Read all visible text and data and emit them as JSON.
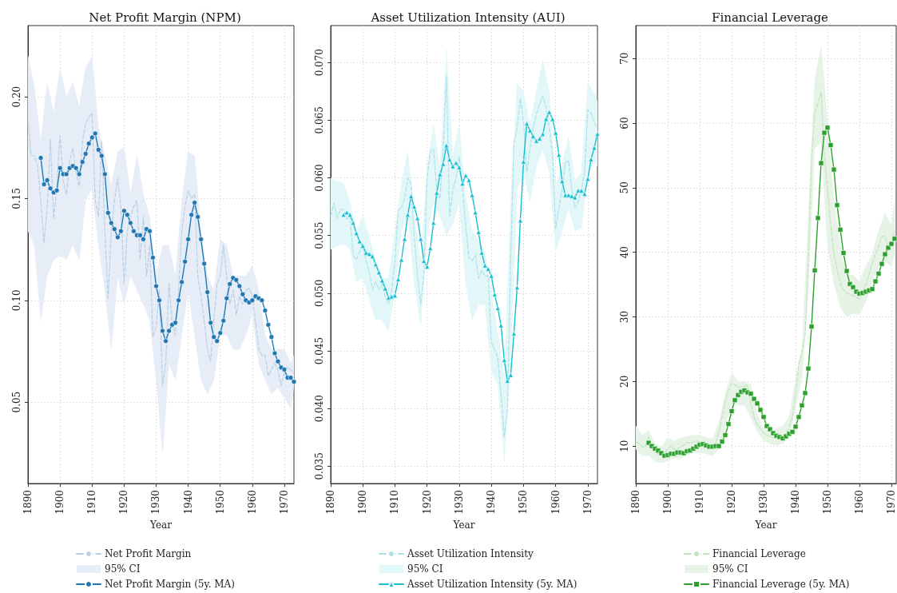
{
  "chart_data": [
    {
      "type": "line",
      "title": "Net Profit Margin (NPM)",
      "xlabel": "Year",
      "xlim": [
        1890,
        1973
      ],
      "xticks": [
        1890,
        1900,
        1910,
        1920,
        1930,
        1940,
        1950,
        1960,
        1970
      ],
      "ylim": [
        0.01,
        0.235
      ],
      "yticks": [
        {
          "value": 0.05,
          "label": "0.05"
        },
        {
          "value": 0.1,
          "label": "0.10"
        },
        {
          "value": 0.15,
          "label": "0.15"
        },
        {
          "value": 0.2,
          "label": "0.20"
        }
      ],
      "grid": true,
      "legend": "bottom",
      "series": [
        {
          "name": "Net Profit Margin",
          "type": "line",
          "color": "#b9cfe4",
          "marker": "none",
          "line_style": "dashed",
          "x": [
            1890,
            1891,
            1892,
            1893,
            1894,
            1895,
            1896,
            1897,
            1898,
            1899,
            1900,
            1901,
            1902,
            1903,
            1904,
            1905,
            1906,
            1907,
            1908,
            1909,
            1910,
            1911,
            1912,
            1913,
            1914,
            1915,
            1916,
            1917,
            1918,
            1919,
            1920,
            1921,
            1922,
            1923,
            1924,
            1925,
            1926,
            1927,
            1928,
            1929,
            1930,
            1931,
            1932,
            1933,
            1934,
            1935,
            1936,
            1937,
            1938,
            1939,
            1940,
            1941,
            1942,
            1943,
            1944,
            1945,
            1946,
            1947,
            1948,
            1949,
            1950,
            1951,
            1952,
            1953,
            1954,
            1955,
            1956,
            1957,
            1958,
            1959,
            1960,
            1961,
            1962,
            1963,
            1964,
            1965,
            1966,
            1967,
            1968,
            1969,
            1970,
            1971,
            1972,
            1973
          ],
          "values": [
            0.188,
            0.171,
            0.171,
            0.166,
            0.149,
            0.128,
            0.146,
            0.179,
            0.14,
            0.155,
            0.181,
            0.159,
            0.152,
            0.168,
            0.175,
            0.163,
            0.156,
            0.178,
            0.187,
            0.19,
            0.192,
            0.149,
            0.141,
            0.178,
            0.134,
            0.101,
            0.134,
            0.149,
            0.16,
            0.146,
            0.108,
            0.134,
            0.141,
            0.146,
            0.149,
            0.12,
            0.141,
            0.112,
            0.127,
            0.082,
            0.087,
            0.105,
            0.058,
            0.069,
            0.108,
            0.09,
            0.083,
            0.105,
            0.134,
            0.146,
            0.154,
            0.15,
            0.152,
            0.112,
            0.102,
            0.09,
            0.076,
            0.07,
            0.09,
            0.108,
            0.112,
            0.127,
            0.112,
            0.098,
            0.105,
            0.093,
            0.102,
            0.098,
            0.105,
            0.106,
            0.102,
            0.09,
            0.076,
            0.073,
            0.073,
            0.063,
            0.066,
            0.069,
            0.066,
            0.058,
            0.064,
            0.067,
            0.066,
            0.064
          ]
        },
        {
          "name": "95% CI",
          "type": "area",
          "color": "#e6edf6",
          "values": [
            null,
            null,
            null,
            null,
            null,
            null,
            null,
            null,
            null,
            null,
            null,
            null,
            null,
            null,
            null,
            null,
            null,
            null,
            null,
            null,
            null,
            null,
            null,
            null,
            null,
            null,
            null,
            null,
            null,
            null,
            null,
            null,
            null,
            null,
            null,
            null,
            null,
            null,
            null,
            null,
            null,
            null,
            null
          ],
          "x": [
            1890,
            1892,
            1894,
            1896,
            1898,
            1900,
            1902,
            1904,
            1906,
            1908,
            1910,
            1912,
            1914,
            1916,
            1918,
            1920,
            1922,
            1924,
            1926,
            1928,
            1930,
            1932,
            1934,
            1936,
            1938,
            1940,
            1942,
            1944,
            1946,
            1948,
            1950,
            1952,
            1954,
            1956,
            1958,
            1960,
            1962,
            1964,
            1966,
            1968,
            1970,
            1972,
            1973
          ],
          "lower": [
            0.134,
            0.127,
            0.09,
            0.112,
            0.12,
            0.122,
            0.12,
            0.127,
            0.12,
            0.149,
            0.155,
            0.127,
            0.105,
            0.076,
            0.112,
            0.098,
            0.112,
            0.105,
            0.098,
            0.09,
            0.061,
            0.025,
            0.069,
            0.061,
            0.083,
            0.105,
            0.083,
            0.061,
            0.054,
            0.061,
            0.083,
            0.083,
            0.076,
            0.076,
            0.083,
            0.093,
            0.069,
            0.061,
            0.054,
            0.057,
            0.052,
            0.047,
            0.058
          ],
          "upper": [
            0.22,
            0.205,
            0.178,
            0.207,
            0.192,
            0.214,
            0.2,
            0.207,
            0.195,
            0.214,
            0.22,
            0.185,
            0.171,
            0.156,
            0.173,
            0.175,
            0.152,
            0.171,
            0.152,
            0.141,
            0.112,
            0.127,
            0.127,
            0.112,
            0.149,
            0.173,
            0.171,
            0.134,
            0.112,
            0.105,
            0.13,
            0.127,
            0.112,
            0.112,
            0.112,
            0.117,
            0.105,
            0.083,
            0.076,
            0.076,
            0.076,
            0.069,
            0.073
          ]
        },
        {
          "name": "Net Profit Margin (5y. MA)",
          "type": "line",
          "color": "#1f77b4",
          "marker": "circle",
          "line_style": "solid",
          "x": [
            1894,
            1895,
            1896,
            1897,
            1898,
            1899,
            1900,
            1901,
            1902,
            1903,
            1904,
            1905,
            1906,
            1907,
            1908,
            1909,
            1910,
            1911,
            1912,
            1913,
            1914,
            1915,
            1916,
            1917,
            1918,
            1919,
            1920,
            1921,
            1922,
            1923,
            1924,
            1925,
            1926,
            1927,
            1928,
            1929,
            1930,
            1931,
            1932,
            1933,
            1934,
            1935,
            1936,
            1937,
            1938,
            1939,
            1940,
            1941,
            1942,
            1943,
            1944,
            1945,
            1946,
            1947,
            1948,
            1949,
            1950,
            1951,
            1952,
            1953,
            1954,
            1955,
            1956,
            1957,
            1958,
            1959,
            1960,
            1961,
            1962,
            1963,
            1964,
            1965,
            1966,
            1967,
            1968,
            1969,
            1970,
            1971,
            1972,
            1973
          ],
          "values": [
            0.17,
            0.157,
            0.159,
            0.155,
            0.153,
            0.154,
            0.165,
            0.162,
            0.162,
            0.165,
            0.166,
            0.165,
            0.162,
            0.168,
            0.172,
            0.177,
            0.18,
            0.182,
            0.174,
            0.171,
            0.162,
            0.143,
            0.138,
            0.135,
            0.131,
            0.134,
            0.144,
            0.142,
            0.138,
            0.134,
            0.132,
            0.132,
            0.13,
            0.135,
            0.134,
            0.121,
            0.107,
            0.1,
            0.085,
            0.08,
            0.085,
            0.088,
            0.089,
            0.1,
            0.109,
            0.119,
            0.13,
            0.142,
            0.148,
            0.141,
            0.13,
            0.118,
            0.104,
            0.089,
            0.082,
            0.08,
            0.084,
            0.09,
            0.101,
            0.108,
            0.111,
            0.11,
            0.107,
            0.103,
            0.1,
            0.099,
            0.1,
            0.102,
            0.101,
            0.1,
            0.095,
            0.088,
            0.082,
            0.074,
            0.07,
            0.067,
            0.066,
            0.062,
            0.062,
            0.06
          ]
        }
      ]
    },
    {
      "type": "line",
      "title": "Asset Utilization Intensity (AUI)",
      "xlabel": "Year",
      "xlim": [
        1890,
        1973
      ],
      "xticks": [
        1890,
        1900,
        1910,
        1920,
        1930,
        1940,
        1950,
        1960,
        1970
      ],
      "ylim": [
        0.0335,
        0.0732
      ],
      "yticks": [
        {
          "value": 0.035,
          "label": "0.035"
        },
        {
          "value": 0.04,
          "label": "0.040"
        },
        {
          "value": 0.045,
          "label": "0.045"
        },
        {
          "value": 0.05,
          "label": "0.050"
        },
        {
          "value": 0.055,
          "label": "0.055"
        },
        {
          "value": 0.06,
          "label": "0.060"
        },
        {
          "value": 0.065,
          "label": "0.065"
        },
        {
          "value": 0.07,
          "label": "0.070"
        }
      ],
      "grid": true,
      "legend": "bottom",
      "series": [
        {
          "name": "Asset Utilization Intensity",
          "type": "line",
          "color": "#a9e2e9",
          "marker": "none",
          "line_style": "dashed",
          "x": [
            1890,
            1891,
            1892,
            1893,
            1894,
            1895,
            1896,
            1897,
            1898,
            1899,
            1900,
            1901,
            1902,
            1903,
            1904,
            1905,
            1906,
            1907,
            1908,
            1909,
            1910,
            1911,
            1912,
            1913,
            1914,
            1915,
            1916,
            1917,
            1918,
            1919,
            1920,
            1921,
            1922,
            1923,
            1924,
            1925,
            1926,
            1927,
            1928,
            1929,
            1930,
            1931,
            1932,
            1933,
            1934,
            1935,
            1936,
            1937,
            1938,
            1939,
            1940,
            1941,
            1942,
            1943,
            1944,
            1945,
            1946,
            1947,
            1948,
            1949,
            1950,
            1951,
            1952,
            1953,
            1954,
            1955,
            1956,
            1957,
            1958,
            1959,
            1960,
            1961,
            1962,
            1963,
            1964,
            1965,
            1966,
            1967,
            1968,
            1969,
            1970,
            1971,
            1972,
            1973
          ],
          "values": [
            0.0567,
            0.0578,
            0.0564,
            0.0573,
            0.0572,
            0.0564,
            0.0567,
            0.0533,
            0.0529,
            0.0536,
            0.0543,
            0.0528,
            0.0518,
            0.0503,
            0.051,
            0.0503,
            0.0508,
            0.0497,
            0.0491,
            0.0503,
            0.0528,
            0.0572,
            0.0574,
            0.0582,
            0.06,
            0.0595,
            0.0549,
            0.0515,
            0.049,
            0.0515,
            0.06,
            0.0623,
            0.0625,
            0.059,
            0.0582,
            0.0625,
            0.0688,
            0.0567,
            0.059,
            0.06,
            0.0618,
            0.0592,
            0.0559,
            0.0531,
            0.0528,
            0.0533,
            0.0513,
            0.052,
            0.0515,
            0.0515,
            0.0457,
            0.0451,
            0.0444,
            0.0413,
            0.0375,
            0.04,
            0.0528,
            0.063,
            0.0643,
            0.0669,
            0.0648,
            0.0605,
            0.0625,
            0.0643,
            0.0656,
            0.0664,
            0.0671,
            0.0661,
            0.0643,
            0.062,
            0.0556,
            0.0574,
            0.059,
            0.0613,
            0.0615,
            0.059,
            0.0574,
            0.0579,
            0.059,
            0.0605,
            0.0659,
            0.0656,
            0.0648,
            0.0643
          ]
        },
        {
          "name": "95% CI",
          "type": "area",
          "color": "#e3f6f8",
          "values": [
            null,
            null,
            null,
            null,
            null,
            null,
            null,
            null,
            null,
            null,
            null,
            null,
            null,
            null,
            null,
            null,
            null,
            null,
            null,
            null,
            null,
            null,
            null,
            null,
            null,
            null,
            null,
            null,
            null,
            null,
            null,
            null,
            null,
            null,
            null,
            null,
            null,
            null,
            null,
            null,
            null,
            null,
            null
          ],
          "x": [
            1890,
            1892,
            1894,
            1896,
            1898,
            1900,
            1902,
            1904,
            1906,
            1908,
            1910,
            1912,
            1914,
            1916,
            1918,
            1920,
            1922,
            1924,
            1926,
            1928,
            1930,
            1932,
            1934,
            1936,
            1938,
            1940,
            1942,
            1944,
            1946,
            1948,
            1950,
            1952,
            1954,
            1956,
            1958,
            1960,
            1962,
            1964,
            1966,
            1968,
            1970,
            1972,
            1973
          ],
          "lower": [
            0.0538,
            0.0541,
            0.0543,
            0.0538,
            0.051,
            0.0513,
            0.0495,
            0.0477,
            0.0477,
            0.0467,
            0.0503,
            0.0554,
            0.0567,
            0.0508,
            0.0472,
            0.0549,
            0.0579,
            0.0567,
            0.055,
            0.056,
            0.0579,
            0.0508,
            0.0477,
            0.049,
            0.049,
            0.0431,
            0.0421,
            0.0354,
            0.044,
            0.059,
            0.0605,
            0.0579,
            0.061,
            0.0625,
            0.0605,
            0.0536,
            0.0554,
            0.0574,
            0.0554,
            0.0556,
            0.0605,
            0.0613,
            0.061
          ],
          "upper": [
            0.06,
            0.0597,
            0.0595,
            0.0579,
            0.0554,
            0.0567,
            0.0549,
            0.0528,
            0.0513,
            0.0513,
            0.0554,
            0.0595,
            0.0623,
            0.0567,
            0.0528,
            0.061,
            0.0646,
            0.061,
            0.0712,
            0.062,
            0.0646,
            0.0584,
            0.0554,
            0.0546,
            0.0536,
            0.05,
            0.0465,
            0.0426,
            0.0579,
            0.0682,
            0.0674,
            0.0646,
            0.0676,
            0.0702,
            0.0674,
            0.0592,
            0.0613,
            0.0636,
            0.0597,
            0.0605,
            0.0682,
            0.0674,
            0.0666
          ]
        },
        {
          "name": "Asset Utilization Intensity (5y. MA)",
          "type": "line",
          "color": "#17becf",
          "marker": "triangle",
          "line_style": "solid",
          "x": [
            1894,
            1895,
            1896,
            1897,
            1898,
            1899,
            1900,
            1901,
            1902,
            1903,
            1904,
            1905,
            1906,
            1907,
            1908,
            1909,
            1910,
            1911,
            1912,
            1913,
            1914,
            1915,
            1916,
            1917,
            1918,
            1919,
            1920,
            1921,
            1922,
            1923,
            1924,
            1925,
            1926,
            1927,
            1928,
            1929,
            1930,
            1931,
            1932,
            1933,
            1934,
            1935,
            1936,
            1937,
            1938,
            1939,
            1940,
            1941,
            1942,
            1943,
            1944,
            1945,
            1946,
            1947,
            1948,
            1949,
            1950,
            1951,
            1952,
            1953,
            1954,
            1955,
            1956,
            1957,
            1958,
            1959,
            1960,
            1961,
            1962,
            1963,
            1964,
            1965,
            1966,
            1967,
            1968,
            1969,
            1970,
            1971,
            1972,
            1973
          ],
          "values": [
            0.0568,
            0.057,
            0.0568,
            0.0561,
            0.0552,
            0.0545,
            0.0541,
            0.0535,
            0.0534,
            0.0532,
            0.0525,
            0.0518,
            0.0511,
            0.0504,
            0.0496,
            0.0497,
            0.0498,
            0.0512,
            0.0529,
            0.0547,
            0.0568,
            0.0584,
            0.0575,
            0.0565,
            0.0547,
            0.0528,
            0.0523,
            0.0539,
            0.0561,
            0.0587,
            0.0603,
            0.0612,
            0.0628,
            0.0616,
            0.061,
            0.0613,
            0.0609,
            0.0595,
            0.0602,
            0.0598,
            0.0585,
            0.057,
            0.0553,
            0.0535,
            0.0524,
            0.0521,
            0.0515,
            0.0499,
            0.0487,
            0.0472,
            0.0442,
            0.0424,
            0.0429,
            0.0465,
            0.0505,
            0.0563,
            0.0614,
            0.0647,
            0.0641,
            0.0636,
            0.0632,
            0.0634,
            0.0638,
            0.0651,
            0.0657,
            0.0651,
            0.0639,
            0.062,
            0.0597,
            0.0585,
            0.0585,
            0.0584,
            0.0583,
            0.0589,
            0.0589,
            0.0586,
            0.0599,
            0.0616,
            0.0626,
            0.0638
          ]
        }
      ]
    },
    {
      "type": "line",
      "title": "Financial Leverage",
      "xlabel": "Year",
      "xlim": [
        1890,
        1971.5
      ],
      "xticks": [
        1890,
        1900,
        1910,
        1920,
        1930,
        1940,
        1950,
        1960,
        1970
      ],
      "ylim": [
        4.2,
        75.1
      ],
      "yticks": [
        10,
        20,
        30,
        40,
        50,
        60,
        70
      ],
      "grid": true,
      "legend": "bottom",
      "series": [
        {
          "name": "Financial Leverage",
          "type": "line",
          "color": "#bfe3bc",
          "marker": "none",
          "line_style": "dashed",
          "x": [
            1890,
            1891,
            1892,
            1893,
            1894,
            1895,
            1896,
            1897,
            1898,
            1899,
            1900,
            1901,
            1902,
            1903,
            1904,
            1905,
            1906,
            1907,
            1908,
            1909,
            1910,
            1911,
            1912,
            1913,
            1914,
            1915,
            1916,
            1917,
            1918,
            1919,
            1920,
            1921,
            1922,
            1923,
            1924,
            1925,
            1926,
            1927,
            1928,
            1929,
            1930,
            1931,
            1932,
            1933,
            1934,
            1935,
            1936,
            1937,
            1938,
            1939,
            1940,
            1941,
            1942,
            1943,
            1944,
            1945,
            1946,
            1947,
            1948,
            1949,
            1950,
            1951,
            1952,
            1953,
            1954,
            1955,
            1956,
            1957,
            1958,
            1959,
            1960,
            1961,
            1962,
            1963,
            1964,
            1965,
            1966,
            1967,
            1968,
            1969,
            1970,
            1971
          ],
          "values": [
            10.6,
            10.4,
            9.9,
            9.9,
            11.5,
            9.5,
            9.0,
            8.8,
            8.5,
            8.8,
            9.5,
            10.1,
            9.5,
            9.5,
            9.9,
            10.1,
            10.6,
            10.4,
            10.6,
            10.8,
            10.6,
            10.4,
            10.1,
            9.9,
            9.9,
            10.4,
            12.2,
            14.5,
            16.8,
            18.6,
            19.7,
            19.5,
            19.1,
            19.2,
            19.3,
            19.3,
            16.8,
            14.5,
            13.3,
            12.7,
            12.0,
            11.7,
            11.5,
            11.3,
            11.3,
            11.3,
            11.5,
            12.0,
            12.9,
            14.5,
            18.1,
            22.7,
            24.6,
            27.3,
            38.7,
            54.8,
            61.6,
            63.0,
            64.8,
            55.2,
            49.7,
            44.2,
            39.7,
            37.4,
            35.1,
            34.2,
            33.7,
            33.5,
            33.3,
            33.0,
            32.8,
            33.9,
            35.1,
            36.5,
            38.3,
            39.7,
            41.0,
            42.4,
            42.6,
            40.6,
            41.5,
            43.3
          ]
        },
        {
          "name": "95% CI",
          "type": "area",
          "color": "#e7f3e6",
          "values": [
            null,
            null,
            null,
            null,
            null,
            null,
            null,
            null,
            null,
            null,
            null,
            null,
            null,
            null,
            null,
            null,
            null,
            null,
            null,
            null,
            null,
            null,
            null,
            null,
            null,
            null,
            null,
            null,
            null,
            null,
            null,
            null,
            null,
            null,
            null,
            null,
            null,
            null,
            null,
            null,
            null,
            null
          ],
          "x": [
            1890,
            1892,
            1894,
            1896,
            1898,
            1900,
            1902,
            1904,
            1906,
            1908,
            1910,
            1912,
            1914,
            1916,
            1918,
            1920,
            1922,
            1924,
            1926,
            1928,
            1930,
            1932,
            1934,
            1936,
            1938,
            1940,
            1942,
            1944,
            1946,
            1948,
            1950,
            1952,
            1954,
            1956,
            1958,
            1960,
            1962,
            1964,
            1966,
            1968,
            1970,
            1971
          ],
          "lower": [
            9.5,
            8.5,
            8.5,
            7.6,
            7.4,
            7.8,
            8.1,
            8.1,
            8.5,
            9.0,
            9.0,
            8.8,
            8.5,
            9.5,
            13.1,
            16.8,
            16.3,
            16.3,
            14.5,
            12.2,
            10.8,
            10.4,
            10.1,
            10.4,
            11.3,
            15.9,
            20.4,
            34.2,
            56.1,
            57.0,
            41.0,
            35.1,
            31.4,
            30.0,
            30.5,
            30.3,
            32.3,
            35.5,
            37.8,
            38.7,
            37.8,
            39.7
          ],
          "upper": [
            13.1,
            11.7,
            12.4,
            10.4,
            9.9,
            11.3,
            10.8,
            11.3,
            11.5,
            11.7,
            11.7,
            11.3,
            11.1,
            13.6,
            18.1,
            21.4,
            20.0,
            20.0,
            19.5,
            14.9,
            12.7,
            12.2,
            12.7,
            13.1,
            14.5,
            20.4,
            25.0,
            45.6,
            66.7,
            71.9,
            60.3,
            47.9,
            41.0,
            36.5,
            36.5,
            35.5,
            37.8,
            39.7,
            43.3,
            46.1,
            44.2,
            47.9
          ]
        },
        {
          "name": "Financial Leverage (5y. MA)",
          "type": "line",
          "color": "#2ca02c",
          "marker": "square",
          "line_style": "solid",
          "x": [
            1894,
            1895,
            1896,
            1897,
            1898,
            1899,
            1900,
            1901,
            1902,
            1903,
            1904,
            1905,
            1906,
            1907,
            1908,
            1909,
            1910,
            1911,
            1912,
            1913,
            1914,
            1915,
            1916,
            1917,
            1918,
            1919,
            1920,
            1921,
            1922,
            1923,
            1924,
            1925,
            1926,
            1927,
            1928,
            1929,
            1930,
            1931,
            1932,
            1933,
            1934,
            1935,
            1936,
            1937,
            1938,
            1939,
            1940,
            1941,
            1942,
            1943,
            1944,
            1945,
            1946,
            1947,
            1948,
            1949,
            1950,
            1951,
            1952,
            1953,
            1954,
            1955,
            1956,
            1957,
            1958,
            1959,
            1960,
            1961,
            1962,
            1963,
            1964,
            1965,
            1966,
            1967,
            1968,
            1969,
            1970,
            1971
          ],
          "values": [
            10.5,
            10.0,
            9.6,
            9.3,
            8.9,
            8.5,
            8.6,
            8.8,
            8.8,
            9.0,
            9.0,
            8.9,
            9.2,
            9.3,
            9.6,
            9.9,
            10.2,
            10.3,
            10.1,
            9.9,
            9.9,
            10.0,
            10.0,
            10.7,
            11.7,
            13.4,
            15.4,
            17.1,
            17.9,
            18.4,
            18.6,
            18.3,
            18.1,
            17.3,
            16.6,
            15.6,
            14.5,
            13.1,
            12.6,
            12.0,
            11.6,
            11.4,
            11.2,
            11.5,
            11.9,
            12.2,
            13.0,
            14.5,
            16.3,
            18.2,
            22.0,
            28.5,
            37.2,
            45.3,
            53.8,
            58.5,
            59.3,
            56.6,
            52.8,
            47.3,
            43.5,
            39.9,
            37.1,
            35.1,
            34.6,
            33.9,
            33.6,
            33.7,
            33.9,
            34.1,
            34.3,
            35.5,
            36.7,
            38.2,
            39.7,
            40.7,
            41.3,
            42.1
          ]
        }
      ]
    }
  ]
}
